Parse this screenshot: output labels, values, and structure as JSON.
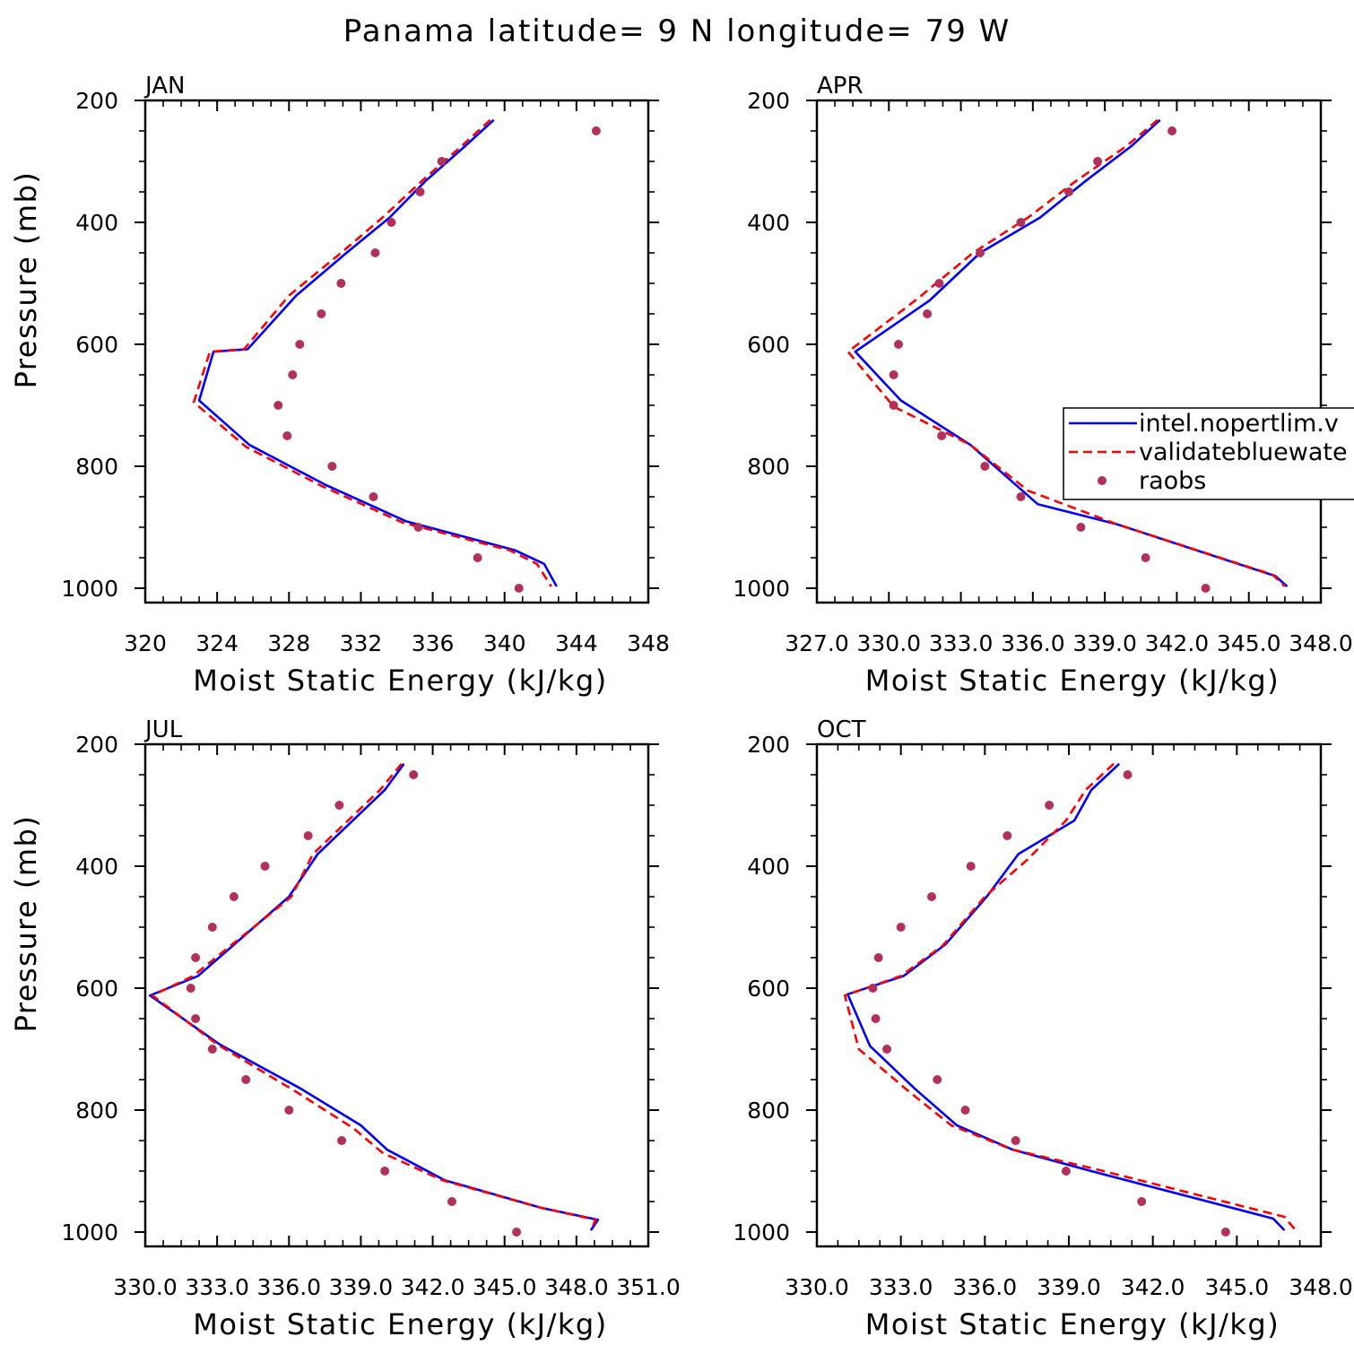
{
  "figure": {
    "title": "Panama  latitude= 9 N longitude= 79 W"
  },
  "chart_data": [
    {
      "type": "line",
      "panel": "JAN",
      "xlabel": "Moist Static Energy (kJ/kg)",
      "ylabel": "Pressure (mb)",
      "xlim": [
        320,
        348
      ],
      "ylim": [
        1000,
        200
      ],
      "xticks": [
        "320",
        "324",
        "328",
        "332",
        "336",
        "340",
        "344",
        "348"
      ],
      "yticks": [
        "200",
        "400",
        "600",
        "800",
        "1000"
      ],
      "series": [
        {
          "name": "intel.nopertlim.v",
          "color": "#0000ff",
          "style": "solid",
          "x": [
            339.4,
            337.8,
            335.6,
            333.6,
            331.2,
            328.4,
            325.7,
            323.8,
            323.0,
            325.8,
            330.0,
            334.5,
            340.6,
            342.2,
            342.9
          ],
          "y": [
            232,
            275,
            332,
            392,
            450,
            520,
            608,
            612,
            692,
            765,
            830,
            890,
            938,
            960,
            997
          ]
        },
        {
          "name": "validatebluewate",
          "color": "#ff0000",
          "style": "dashed",
          "x": [
            339.2,
            337.6,
            335.4,
            333.2,
            330.9,
            328.0,
            325.5,
            323.6,
            322.7,
            325.6,
            329.8,
            334.3,
            340.3,
            341.8,
            342.6
          ],
          "y": [
            232,
            275,
            332,
            392,
            450,
            520,
            608,
            612,
            695,
            768,
            832,
            892,
            938,
            960,
            997
          ]
        },
        {
          "name": "raobs",
          "color": "#b2305c",
          "style": "markers",
          "x": [
            345.1,
            336.5,
            335.3,
            333.7,
            332.8,
            330.9,
            329.8,
            328.6,
            328.2,
            327.4,
            327.9,
            330.4,
            332.7,
            335.2,
            338.5,
            340.8
          ],
          "y": [
            250,
            300,
            350,
            400,
            450,
            500,
            550,
            600,
            650,
            700,
            750,
            800,
            850,
            900,
            950,
            1000
          ]
        }
      ]
    },
    {
      "type": "line",
      "panel": "APR",
      "xlabel": "Moist Static Energy (kJ/kg)",
      "ylabel": "",
      "xlim": [
        327.0,
        348.0
      ],
      "ylim": [
        1000,
        200
      ],
      "xticks": [
        "327.0",
        "330.0",
        "333.0",
        "336.0",
        "339.0",
        "342.0",
        "345.0",
        "348.0"
      ],
      "yticks": [
        "200",
        "400",
        "600",
        "800",
        "1000"
      ],
      "series": [
        {
          "name": "intel.nopertlim.v",
          "color": "#0000ff",
          "style": "solid",
          "x": [
            341.3,
            340.1,
            338.2,
            336.3,
            333.8,
            331.7,
            328.6,
            330.5,
            333.4,
            336.2,
            339.5,
            346.1,
            346.6
          ],
          "y": [
            232,
            275,
            332,
            392,
            450,
            528,
            612,
            692,
            765,
            862,
            895,
            980,
            997
          ]
        },
        {
          "name": "validatebluewate",
          "color": "#ff0000",
          "style": "dashed",
          "x": [
            341.2,
            339.9,
            337.8,
            335.8,
            333.5,
            331.2,
            328.3,
            330.2,
            333.4,
            335.8,
            339.5,
            346.0,
            346.5
          ],
          "y": [
            232,
            275,
            332,
            392,
            450,
            525,
            612,
            702,
            765,
            840,
            895,
            978,
            997
          ]
        },
        {
          "name": "raobs",
          "color": "#b2305c",
          "style": "markers",
          "x": [
            341.8,
            338.7,
            337.5,
            335.5,
            333.8,
            332.1,
            331.6,
            330.4,
            330.2,
            330.2,
            332.2,
            334.0,
            335.5,
            338.0,
            340.7,
            343.2
          ],
          "y": [
            250,
            300,
            350,
            400,
            450,
            500,
            550,
            600,
            650,
            700,
            750,
            800,
            850,
            900,
            950,
            1000
          ]
        }
      ],
      "legend": {
        "position": "right",
        "entries": [
          {
            "label": "intel.nopertlim.v",
            "style": "solid",
            "color": "#0000ff"
          },
          {
            "label": "validatebluewate",
            "style": "dashed",
            "color": "#ff0000"
          },
          {
            "label": "raobs",
            "style": "markers",
            "color": "#b2305c"
          }
        ]
      }
    },
    {
      "type": "line",
      "panel": "JUL",
      "xlabel": "Moist Static Energy (kJ/kg)",
      "ylabel": "Pressure (mb)",
      "xlim": [
        330.0,
        351.0
      ],
      "ylim": [
        1000,
        200
      ],
      "xticks": [
        "330.0",
        "333.0",
        "336.0",
        "339.0",
        "342.0",
        "345.0",
        "348.0",
        "351.0"
      ],
      "yticks": [
        "200",
        "400",
        "600",
        "800",
        "1000"
      ],
      "series": [
        {
          "name": "intel.nopertlim.v",
          "color": "#0000ff",
          "style": "solid",
          "x": [
            340.8,
            340.0,
            337.2,
            336.0,
            332.2,
            330.2,
            333.1,
            336.5,
            339.0,
            340.1,
            342.5,
            346.5,
            348.9,
            348.6
          ],
          "y": [
            232,
            275,
            380,
            450,
            580,
            612,
            692,
            765,
            825,
            865,
            915,
            960,
            980,
            997
          ]
        },
        {
          "name": "validatebluewate",
          "color": "#ff0000",
          "style": "dashed",
          "x": [
            340.7,
            339.8,
            337.0,
            336.1,
            332.0,
            330.3,
            333.0,
            336.3,
            338.7,
            339.9,
            342.4,
            346.5,
            348.8,
            348.6
          ],
          "y": [
            232,
            275,
            380,
            450,
            580,
            612,
            692,
            770,
            830,
            870,
            915,
            960,
            980,
            997
          ]
        },
        {
          "name": "raobs",
          "color": "#b2305c",
          "style": "markers",
          "x": [
            341.2,
            338.1,
            336.8,
            335.0,
            333.7,
            332.8,
            332.1,
            331.9,
            332.1,
            332.8,
            334.2,
            336.0,
            338.2,
            340.0,
            342.8,
            345.5
          ],
          "y": [
            250,
            300,
            350,
            400,
            450,
            500,
            550,
            600,
            650,
            700,
            750,
            800,
            850,
            900,
            950,
            1000
          ]
        }
      ]
    },
    {
      "type": "line",
      "panel": "OCT",
      "xlabel": "Moist Static Energy (kJ/kg)",
      "ylabel": "",
      "xlim": [
        330.0,
        348.0
      ],
      "ylim": [
        1000,
        200
      ],
      "xticks": [
        "330.0",
        "333.0",
        "336.0",
        "339.0",
        "342.0",
        "345.0",
        "348.0"
      ],
      "yticks": [
        "200",
        "400",
        "600",
        "800",
        "1000"
      ],
      "series": [
        {
          "name": "intel.nopertlim.v",
          "color": "#0000ff",
          "style": "solid",
          "x": [
            340.8,
            339.8,
            339.2,
            337.2,
            336.1,
            334.6,
            333.1,
            331.1,
            331.9,
            333.5,
            335.0,
            337.0,
            339.8,
            346.3,
            346.7
          ],
          "y": [
            232,
            275,
            325,
            380,
            448,
            528,
            580,
            610,
            695,
            765,
            825,
            865,
            900,
            978,
            997
          ]
        },
        {
          "name": "validatebluewate",
          "color": "#ff0000",
          "style": "dashed",
          "x": [
            340.6,
            339.6,
            338.9,
            337.5,
            336.0,
            334.5,
            333.0,
            331.0,
            331.5,
            333.3,
            334.8,
            337.0,
            339.8,
            346.7,
            347.1
          ],
          "y": [
            232,
            275,
            325,
            390,
            450,
            530,
            580,
            612,
            700,
            770,
            825,
            865,
            895,
            975,
            997
          ]
        },
        {
          "name": "raobs",
          "color": "#b2305c",
          "style": "markers",
          "x": [
            341.1,
            338.3,
            336.8,
            335.5,
            334.1,
            333.0,
            332.2,
            332.0,
            332.1,
            332.5,
            334.3,
            335.3,
            337.1,
            338.9,
            341.6,
            344.6
          ],
          "y": [
            250,
            300,
            350,
            400,
            450,
            500,
            550,
            600,
            650,
            700,
            750,
            800,
            850,
            900,
            950,
            1000
          ]
        }
      ]
    }
  ]
}
